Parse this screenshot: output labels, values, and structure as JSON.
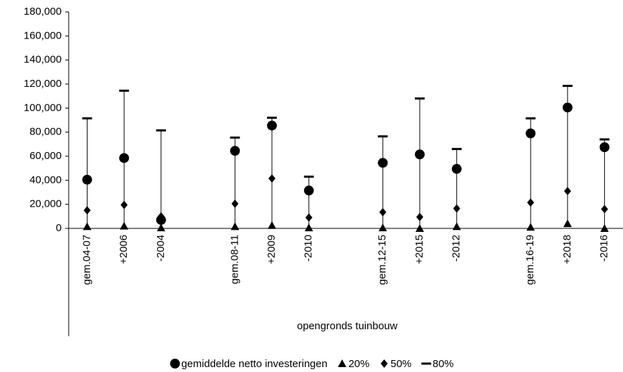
{
  "chart_data": {
    "type": "range-dot",
    "categories": [
      "gem.04-07",
      "+2006",
      "-2004",
      null,
      "gem.08-11",
      "+2009",
      "-2010",
      null,
      "gem.12-15",
      "+2015",
      "-2012",
      null,
      "gem.16-19",
      "+2018",
      "-2016"
    ],
    "xlabel": "opengronds tuinbouw",
    "series": [
      {
        "name": "gemiddelde netto investeringen",
        "marker": "circle",
        "color": "#000000",
        "values": [
          40500,
          58500,
          7000,
          null,
          64500,
          85500,
          31500,
          null,
          54500,
          61500,
          49500,
          null,
          79000,
          100500,
          67500
        ]
      },
      {
        "name": "20%",
        "marker": "triangle",
        "color": "#000000",
        "values": [
          1500,
          2000,
          500,
          null,
          1500,
          2500,
          500,
          null,
          500,
          0,
          1500,
          null,
          1000,
          4000,
          0
        ]
      },
      {
        "name": "50%",
        "marker": "diamond",
        "color": "#000000",
        "values": [
          15000,
          19500,
          10000,
          null,
          20500,
          41500,
          9000,
          null,
          13500,
          9500,
          16500,
          null,
          21500,
          31000,
          16000
        ]
      },
      {
        "name": "80%",
        "marker": "dash",
        "color": "#000000",
        "values": [
          91500,
          114500,
          81500,
          null,
          75500,
          92000,
          43000,
          null,
          76500,
          108000,
          66000,
          null,
          91500,
          118500,
          74000
        ]
      }
    ],
    "ylim": [
      0,
      180000
    ],
    "yticks": [
      0,
      {
        "value": 20000,
        "label": "20,000"
      },
      {
        "value": 40000,
        "label": "40,000"
      },
      {
        "value": 60000,
        "label": "60,000"
      },
      {
        "value": 80000,
        "label": "80,000"
      },
      {
        "value": 100000,
        "label": "100,000"
      },
      {
        "value": 120000,
        "label": "120,000"
      },
      {
        "value": 140000,
        "label": "140,000"
      },
      {
        "value": 160000,
        "label": "160,000"
      },
      {
        "value": 180000,
        "label": "180,000"
      }
    ],
    "legend": "bottom"
  }
}
